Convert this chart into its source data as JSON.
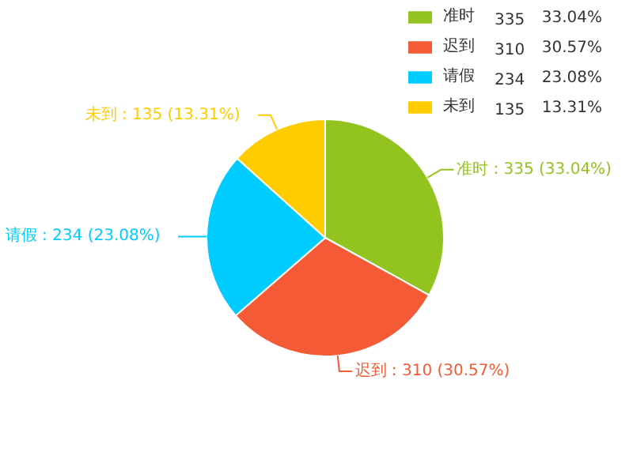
{
  "chart_data": {
    "type": "pie",
    "categories": [
      "准时",
      "迟到",
      "请假",
      "未到"
    ],
    "values": [
      335,
      310,
      234,
      135
    ],
    "colors": [
      "#93c31f",
      "#f45a35",
      "#00ccff",
      "#ffcc00"
    ],
    "value_labels": [
      ": 335 (33.04%)",
      ": 310 (30.57%)",
      ": 234 (23.08%)",
      ": 135 (13.31%)"
    ],
    "annotations": [
      "335",
      "33.04%",
      "310",
      "30.57%",
      "234",
      "23.08%",
      "135",
      "13.31%"
    ],
    "legend": "top right"
  }
}
